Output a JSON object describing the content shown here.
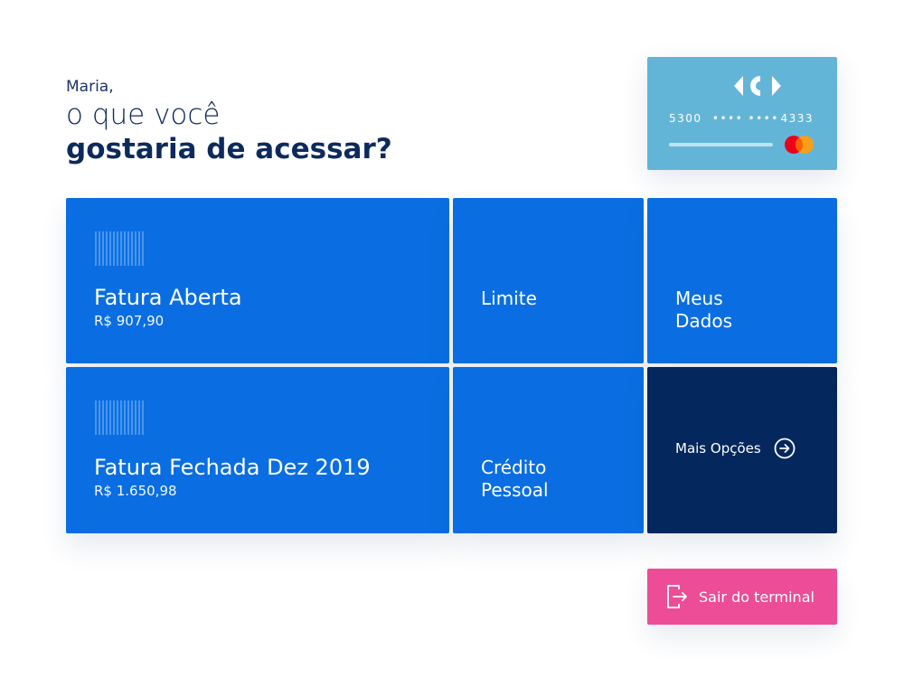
{
  "greeting": {
    "name": "Maria,",
    "line1": "o que você",
    "line2": "gostaria de acessar?"
  },
  "card": {
    "number_prefix": "5300",
    "number_masked": "•••• ••••",
    "number_suffix": "4333",
    "brand_icon": "mastercard-icon",
    "logo_icon": "carrefour-logo",
    "color": "#63b5d8"
  },
  "tiles": {
    "fatura_aberta": {
      "title": "Fatura Aberta",
      "amount": "R$ 907,90",
      "icon": "barcode-icon"
    },
    "limite": {
      "label": "Limite"
    },
    "meus_dados": {
      "line1": "Meus",
      "line2": "Dados"
    },
    "fatura_fechada": {
      "title": "Fatura Fechada Dez 2019",
      "amount": "R$ 1.650,98",
      "icon": "barcode-icon"
    },
    "credito_pessoal": {
      "line1": "Crédito",
      "line2": "Pessoal"
    },
    "mais_opcoes": {
      "label": "Mais Opções",
      "icon": "arrow-right-circle-icon"
    }
  },
  "exit": {
    "label": "Sair do terminal",
    "icon": "exit-icon"
  },
  "colors": {
    "primary_blue": "#0a6ee2",
    "dark_navy": "#04285d",
    "exit_pink": "#ec4d96",
    "heading": "#0d2a5c"
  }
}
